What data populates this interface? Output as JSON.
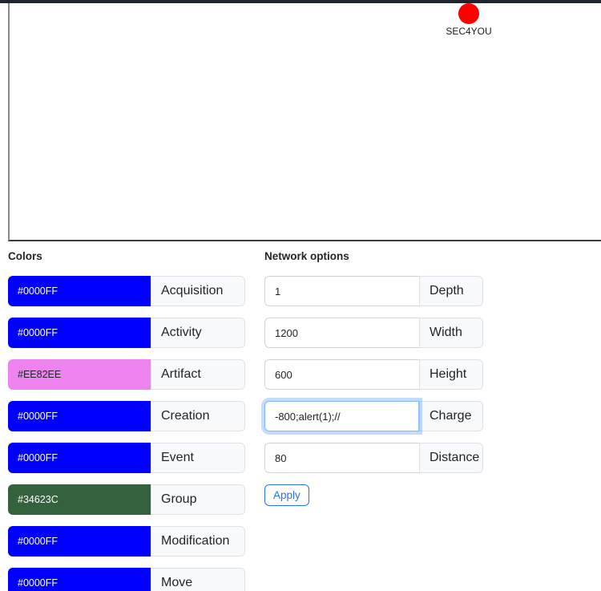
{
  "browser": {
    "chrome_edge_color": "#20242e"
  },
  "graph": {
    "node": {
      "label": "SEC4YOU",
      "color": "#FF0000"
    }
  },
  "colors_section": {
    "title": "Colors",
    "rows": [
      {
        "hex": "#0000FF",
        "label": "Acquisition",
        "swatch": "#0000FF",
        "text_color": "#FFFFFF"
      },
      {
        "hex": "#0000FF",
        "label": "Activity",
        "swatch": "#0000FF",
        "text_color": "#FFFFFF"
      },
      {
        "hex": "#EE82EE",
        "label": "Artifact",
        "swatch": "#EE82EE",
        "text_color": "#212529"
      },
      {
        "hex": "#0000FF",
        "label": "Creation",
        "swatch": "#0000FF",
        "text_color": "#FFFFFF"
      },
      {
        "hex": "#0000FF",
        "label": "Event",
        "swatch": "#0000FF",
        "text_color": "#FFFFFF"
      },
      {
        "hex": "#34623C",
        "label": "Group",
        "swatch": "#34623C",
        "text_color": "#FFFFFF"
      },
      {
        "hex": "#0000FF",
        "label": "Modification",
        "swatch": "#0000FF",
        "text_color": "#FFFFFF"
      },
      {
        "hex": "#0000FF",
        "label": "Move",
        "swatch": "#0000FF",
        "text_color": "#FFFFFF"
      }
    ]
  },
  "network_section": {
    "title": "Network options",
    "fields": [
      {
        "value": "1",
        "label": "Depth"
      },
      {
        "value": "1200",
        "label": "Width"
      },
      {
        "value": "600",
        "label": "Height"
      },
      {
        "value": "-800;alert(1);//",
        "label": "Charge"
      },
      {
        "value": "80",
        "label": "Distance"
      }
    ],
    "apply_label": "Apply"
  },
  "accent_colors": {
    "primary": "#2e6ff2",
    "focus_ring": "rgba(13,110,253,0.25)",
    "node_red": "#FF0000"
  }
}
